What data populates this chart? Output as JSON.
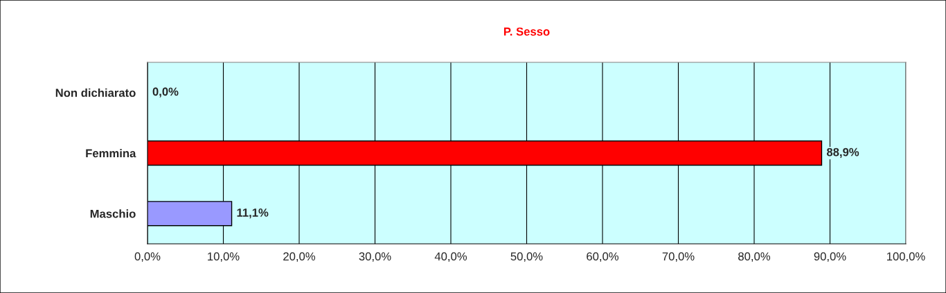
{
  "chart_data": {
    "type": "bar",
    "orientation": "horizontal",
    "title": "P. Sesso",
    "categories": [
      "Non dichiarato",
      "Femmina",
      "Maschio"
    ],
    "values": [
      0,
      88.9,
      11.1
    ],
    "colors": [
      "#9999ff",
      "#ff0000",
      "#9999ff"
    ],
    "value_labels": [
      "0,0%",
      "88,9%",
      "11,1%"
    ],
    "xlim": [
      0,
      100
    ],
    "xticks": [
      {
        "value": 0,
        "label": "0,0%"
      },
      {
        "value": 10,
        "label": "10,0%"
      },
      {
        "value": 20,
        "label": "20,0%"
      },
      {
        "value": 30,
        "label": "30,0%"
      },
      {
        "value": 40,
        "label": "40,0%"
      },
      {
        "value": 50,
        "label": "50,0%"
      },
      {
        "value": 60,
        "label": "60,0%"
      },
      {
        "value": 70,
        "label": "70,0%"
      },
      {
        "value": 80,
        "label": "80,0%"
      },
      {
        "value": 90,
        "label": "90,0%"
      },
      {
        "value": 100,
        "label": "100,0%"
      }
    ],
    "grid": "x",
    "legend": false
  }
}
